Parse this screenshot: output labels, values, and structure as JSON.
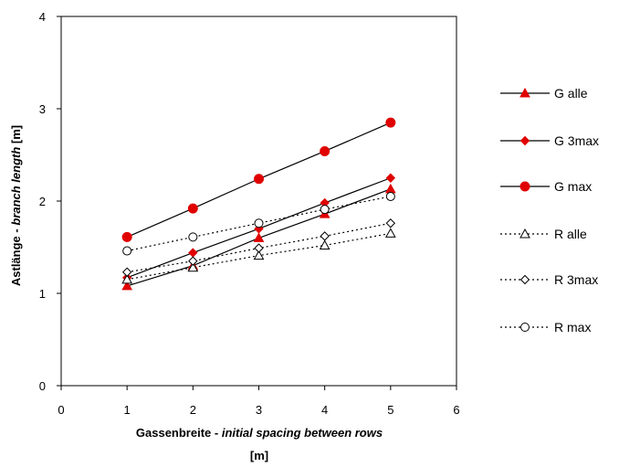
{
  "chart_data": {
    "type": "line",
    "title": "",
    "xlabel": {
      "main": "Gassenbreite - ",
      "italic": "initial spacing between rows",
      "unit": "[m]"
    },
    "ylabel": {
      "main": "Astlänge - ",
      "italic": "branch length",
      "unit": " [m]"
    },
    "xlim": [
      0,
      6
    ],
    "ylim": [
      0,
      4
    ],
    "xticks": [
      "0",
      "1",
      "2",
      "3",
      "4",
      "5",
      "6"
    ],
    "yticks": [
      "0",
      "1",
      "2",
      "3",
      "4"
    ],
    "x": [
      1,
      2,
      3,
      4,
      5
    ],
    "grid": false,
    "legend_position": "right",
    "series": [
      {
        "name": "G alle",
        "values": [
          1.08,
          1.3,
          1.6,
          1.86,
          2.13
        ],
        "marker": "triangle",
        "filled": true,
        "dashed": false,
        "color": "#e00000"
      },
      {
        "name": "G 3max",
        "values": [
          1.17,
          1.44,
          1.7,
          1.98,
          2.25
        ],
        "marker": "diamond",
        "filled": true,
        "dashed": false,
        "color": "#e00000"
      },
      {
        "name": "G max",
        "values": [
          1.61,
          1.92,
          2.24,
          2.54,
          2.85
        ],
        "marker": "circle",
        "filled": true,
        "dashed": false,
        "color": "#e00000"
      },
      {
        "name": "R alle",
        "values": [
          1.15,
          1.28,
          1.41,
          1.52,
          1.65
        ],
        "marker": "triangle",
        "filled": false,
        "dashed": true,
        "color": "#000000"
      },
      {
        "name": "R 3max",
        "values": [
          1.23,
          1.35,
          1.49,
          1.62,
          1.76
        ],
        "marker": "diamond",
        "filled": false,
        "dashed": true,
        "color": "#000000"
      },
      {
        "name": "R max",
        "values": [
          1.46,
          1.61,
          1.76,
          1.91,
          2.05
        ],
        "marker": "circle",
        "filled": false,
        "dashed": true,
        "color": "#000000"
      }
    ]
  }
}
